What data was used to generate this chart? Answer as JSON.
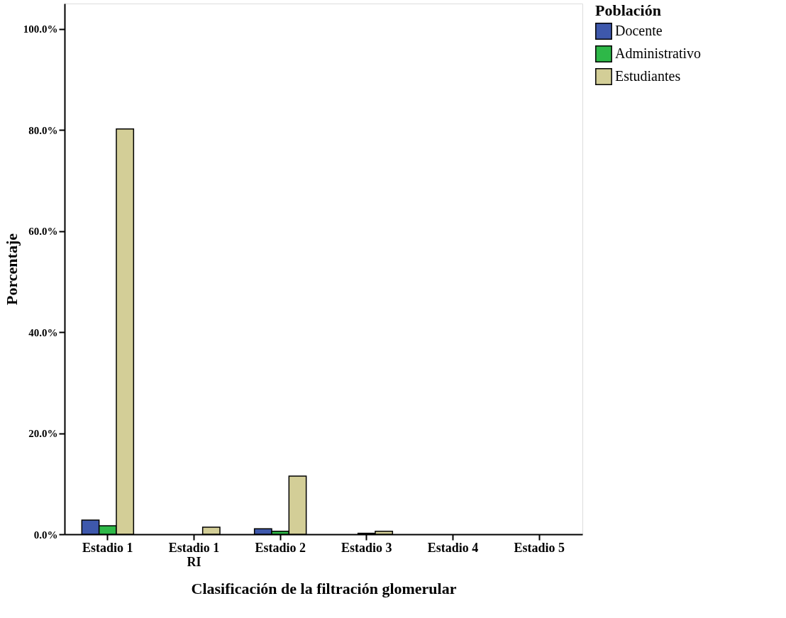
{
  "chart_data": {
    "type": "bar",
    "xlabel": "Clasificación de la filtración glomerular",
    "ylabel": "Porcentaje",
    "legend_title": "Población",
    "legend": "top right",
    "grid": false,
    "categories": [
      "Estadio 1",
      "Estadio 1 RI",
      "Estadio 2",
      "Estadio 3",
      "Estadio 4",
      "Estadio 5"
    ],
    "series": [
      {
        "name": "Docente",
        "color": "#3e58ac",
        "values": [
          2.8,
          null,
          1.1,
          null,
          null,
          null
        ]
      },
      {
        "name": "Administrativo",
        "color": "#2eb848",
        "values": [
          1.7,
          null,
          0.6,
          0.2,
          null,
          null
        ]
      },
      {
        "name": "Estudiantes",
        "color": "#d3ce97",
        "values": [
          80.2,
          1.4,
          11.5,
          0.6,
          null,
          null
        ]
      }
    ],
    "ylim": [
      0,
      105
    ],
    "yticks": [
      {
        "value": 0,
        "label": "0.0%"
      },
      {
        "value": 20,
        "label": "20.0%"
      },
      {
        "value": 40,
        "label": "40.0%"
      },
      {
        "value": 60,
        "label": "60.0%"
      },
      {
        "value": 80,
        "label": "80.0%"
      },
      {
        "value": 100,
        "label": "100.0%"
      }
    ]
  }
}
